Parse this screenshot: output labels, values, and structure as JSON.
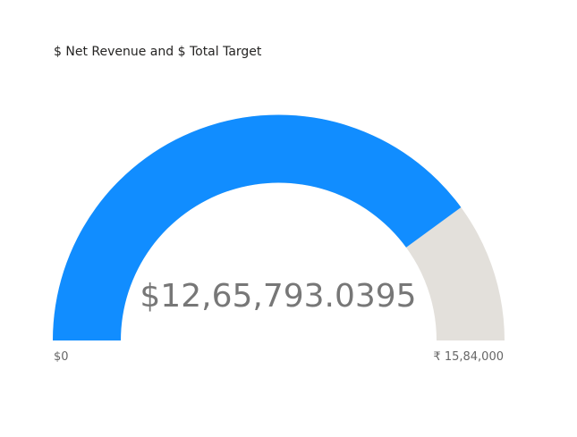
{
  "visual": {
    "title": "$ Net Revenue and $ Total Target"
  },
  "chart_data": {
    "type": "gauge",
    "title": "$ Net Revenue and $ Total Target",
    "min": 0,
    "max": 1584000,
    "value": 1265793.0395,
    "value_label": "$12,65,793.0395",
    "min_label": "$0",
    "max_label": "₹ 15,84,000",
    "colors": {
      "fill": "#118DFF",
      "track": "#E3E0DB"
    }
  }
}
